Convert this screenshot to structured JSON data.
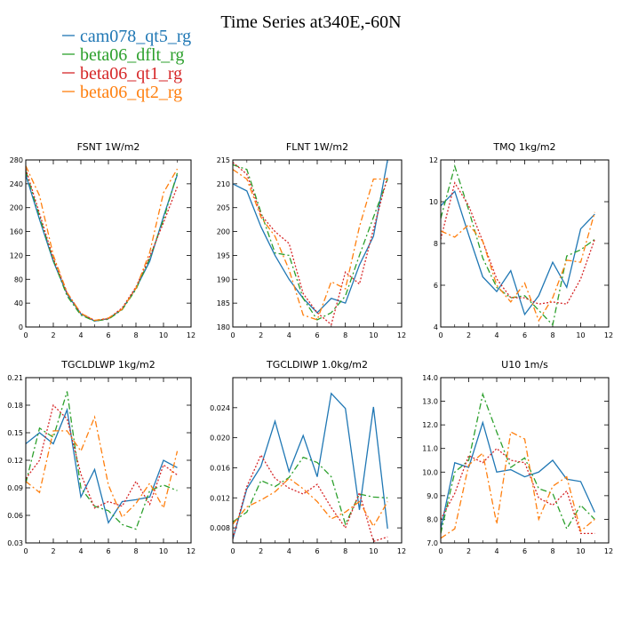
{
  "title": "Time Series at340E,-60N",
  "legend": [
    {
      "name": "cam078_qt5_rg",
      "color": "#1f77b4",
      "dash": "solid"
    },
    {
      "name": "beta06_dflt_rg",
      "color": "#2ca02c",
      "dash": "dashdot"
    },
    {
      "name": "beta06_qt1_rg",
      "color": "#d62728",
      "dash": "dotted"
    },
    {
      "name": "beta06_qt2_rg",
      "color": "#ff7f0e",
      "dash": "dashdot"
    }
  ],
  "chart_data": [
    {
      "type": "line",
      "title": "FSNT   1W/m2",
      "x": [
        0,
        1,
        2,
        3,
        4,
        5,
        6,
        7,
        8,
        9,
        10,
        11
      ],
      "xlim": [
        0,
        12
      ],
      "xticks": [
        0,
        2,
        4,
        6,
        8,
        10,
        12
      ],
      "ylim": [
        0,
        280
      ],
      "yticks": [
        0,
        40,
        80,
        120,
        160,
        200,
        240,
        280
      ],
      "ytick_labels": [
        "0",
        "40",
        "80",
        "120",
        "160",
        "200",
        "240",
        "280"
      ],
      "series": [
        {
          "name": "cam078_qt5_rg",
          "values": [
            255,
            180,
            110,
            55,
            22,
            10,
            14,
            30,
            65,
            110,
            185,
            255
          ]
        },
        {
          "name": "beta06_dflt_rg",
          "values": [
            262,
            185,
            112,
            52,
            20,
            10,
            13,
            29,
            63,
            115,
            180,
            258
          ]
        },
        {
          "name": "beta06_qt1_rg",
          "values": [
            265,
            190,
            115,
            57,
            23,
            11,
            14,
            32,
            67,
            118,
            175,
            235
          ]
        },
        {
          "name": "beta06_qt2_rg",
          "values": [
            270,
            220,
            120,
            58,
            23,
            11,
            15,
            30,
            65,
            125,
            225,
            265
          ]
        }
      ]
    },
    {
      "type": "line",
      "title": "FLNT   1W/m2",
      "x": [
        0,
        1,
        2,
        3,
        4,
        5,
        6,
        7,
        8,
        9,
        10,
        11
      ],
      "xlim": [
        0,
        12
      ],
      "xticks": [
        0,
        2,
        4,
        6,
        8,
        10,
        12
      ],
      "ylim": [
        180,
        215
      ],
      "yticks": [
        180,
        185,
        190,
        195,
        200,
        205,
        210,
        215
      ],
      "ytick_labels": [
        "180",
        "185",
        "190",
        "195",
        "200",
        "205",
        "210",
        "215"
      ],
      "series": [
        {
          "name": "cam078_qt5_rg",
          "values": [
            210,
            208.5,
            201,
            195,
            190,
            186,
            183,
            186,
            185,
            193,
            199,
            215
          ]
        },
        {
          "name": "beta06_dflt_rg",
          "values": [
            214,
            213,
            204,
            195.5,
            195,
            186,
            181.5,
            183,
            186.5,
            195,
            203,
            211
          ]
        },
        {
          "name": "beta06_qt1_rg",
          "values": [
            214.5,
            212,
            203.5,
            200,
            197.5,
            187,
            183,
            180.5,
            191.5,
            189,
            200.5,
            211.5
          ]
        },
        {
          "name": "beta06_qt2_rg",
          "values": [
            213,
            211,
            203,
            199,
            192,
            182.5,
            181.5,
            189.5,
            188,
            201,
            211,
            211
          ]
        }
      ]
    },
    {
      "type": "line",
      "title": "TMQ   1kg/m2",
      "x": [
        0,
        1,
        2,
        3,
        4,
        5,
        6,
        7,
        8,
        9,
        10,
        11
      ],
      "xlim": [
        0,
        12
      ],
      "xticks": [
        0,
        2,
        4,
        6,
        8,
        10,
        12
      ],
      "ylim": [
        4,
        12
      ],
      "yticks": [
        4,
        6,
        8,
        10,
        12
      ],
      "ytick_labels": [
        "4",
        "6",
        "8",
        "10",
        "12"
      ],
      "series": [
        {
          "name": "cam078_qt5_rg",
          "values": [
            9.8,
            10.5,
            8.4,
            6.4,
            5.7,
            6.7,
            4.6,
            5.5,
            7.1,
            5.9,
            8.7,
            9.4
          ]
        },
        {
          "name": "beta06_dflt_rg",
          "values": [
            9.2,
            11.7,
            9.6,
            7.3,
            5.9,
            5.4,
            5.5,
            4.8,
            4.1,
            7.4,
            7.7,
            8.2
          ]
        },
        {
          "name": "beta06_qt1_rg",
          "values": [
            8.2,
            10.9,
            9.8,
            8.1,
            6.3,
            5.4,
            5.4,
            5.1,
            5.2,
            5.1,
            6.3,
            8.2
          ]
        },
        {
          "name": "beta06_qt2_rg",
          "values": [
            8.6,
            8.3,
            8.9,
            8.1,
            6.0,
            5.2,
            6.1,
            4.3,
            5.4,
            7.2,
            7.1,
            9.5
          ]
        }
      ]
    },
    {
      "type": "line",
      "title": "TGCLDLWP   1kg/m2",
      "x": [
        0,
        1,
        2,
        3,
        4,
        5,
        6,
        7,
        8,
        9,
        10,
        11
      ],
      "xlim": [
        0,
        12
      ],
      "xticks": [
        0,
        2,
        4,
        6,
        8,
        10,
        12
      ],
      "ylim": [
        0.03,
        0.21
      ],
      "yticks": [
        0.03,
        0.06,
        0.09,
        0.12,
        0.15,
        0.18,
        0.21
      ],
      "ytick_labels": [
        "0.03",
        "0.06",
        "0.09",
        "0.12",
        "0.15",
        "0.18",
        "0.21"
      ],
      "series": [
        {
          "name": "cam078_qt5_rg",
          "values": [
            0.138,
            0.15,
            0.138,
            0.175,
            0.08,
            0.11,
            0.052,
            0.075,
            0.077,
            0.08,
            0.12,
            0.112
          ]
        },
        {
          "name": "beta06_dflt_rg",
          "values": [
            0.095,
            0.155,
            0.145,
            0.195,
            0.09,
            0.07,
            0.065,
            0.05,
            0.045,
            0.087,
            0.093,
            0.087
          ]
        },
        {
          "name": "beta06_qt1_rg",
          "values": [
            0.1,
            0.12,
            0.18,
            0.165,
            0.105,
            0.068,
            0.075,
            0.07,
            0.097,
            0.072,
            0.115,
            0.104
          ]
        },
        {
          "name": "beta06_qt2_rg",
          "values": [
            0.097,
            0.085,
            0.152,
            0.152,
            0.13,
            0.167,
            0.093,
            0.058,
            0.073,
            0.095,
            0.068,
            0.13
          ]
        }
      ]
    },
    {
      "type": "line",
      "title": "TGCLDIWP   1.0kg/m2",
      "x": [
        0,
        1,
        2,
        3,
        4,
        5,
        6,
        7,
        8,
        9,
        10,
        11
      ],
      "xlim": [
        0,
        12
      ],
      "xticks": [
        0,
        2,
        4,
        6,
        8,
        10,
        12
      ],
      "ylim": [
        0.006,
        0.028
      ],
      "yticks": [
        0.008,
        0.012,
        0.016,
        0.02,
        0.024
      ],
      "ytick_labels": [
        "0.008",
        "0.012",
        "0.016",
        "0.020",
        "0.024"
      ],
      "series": [
        {
          "name": "cam078_qt5_rg",
          "values": [
            0.0065,
            0.0132,
            0.0162,
            0.0222,
            0.0155,
            0.0203,
            0.0148,
            0.0259,
            0.0239,
            0.0104,
            0.0241,
            0.0079
          ]
        },
        {
          "name": "beta06_dflt_rg",
          "values": [
            0.0088,
            0.0101,
            0.0143,
            0.0135,
            0.0147,
            0.0174,
            0.0167,
            0.0148,
            0.0085,
            0.0125,
            0.0121,
            0.012
          ]
        },
        {
          "name": "beta06_qt1_rg",
          "values": [
            0.0066,
            0.0135,
            0.0177,
            0.0146,
            0.0133,
            0.0125,
            0.0138,
            0.0107,
            0.008,
            0.0127,
            0.0062,
            0.0068
          ]
        },
        {
          "name": "beta06_qt2_rg",
          "values": [
            0.0085,
            0.0108,
            0.0117,
            0.0128,
            0.0146,
            0.0132,
            0.0115,
            0.0092,
            0.0101,
            0.0115,
            0.0082,
            0.0115
          ]
        }
      ]
    },
    {
      "type": "line",
      "title": "U10   1m/s",
      "x": [
        0,
        1,
        2,
        3,
        4,
        5,
        6,
        7,
        8,
        9,
        10,
        11
      ],
      "xlim": [
        0,
        12
      ],
      "xticks": [
        0,
        2,
        4,
        6,
        8,
        10,
        12
      ],
      "ylim": [
        7,
        14
      ],
      "yticks": [
        7,
        8,
        9,
        10,
        11,
        12,
        13,
        14
      ],
      "ytick_labels": [
        "7.0",
        "8.0",
        "9.0",
        "10.0",
        "11.0",
        "12.0",
        "13.0",
        "14.0"
      ],
      "series": [
        {
          "name": "cam078_qt5_rg",
          "values": [
            7.6,
            10.4,
            10.2,
            12.1,
            10.0,
            10.1,
            9.8,
            10.0,
            10.5,
            9.7,
            9.6,
            8.3
          ]
        },
        {
          "name": "beta06_dflt_rg",
          "values": [
            7.4,
            10.0,
            10.5,
            13.3,
            11.7,
            10.2,
            10.6,
            9.3,
            9.1,
            7.6,
            8.6,
            8.0
          ]
        },
        {
          "name": "beta06_qt1_rg",
          "values": [
            8.0,
            9.1,
            10.7,
            10.4,
            11.0,
            10.5,
            10.4,
            8.9,
            8.6,
            9.2,
            7.4,
            7.4
          ]
        },
        {
          "name": "beta06_qt2_rg",
          "values": [
            7.2,
            7.6,
            10.3,
            10.8,
            7.8,
            11.7,
            11.4,
            8.0,
            9.4,
            9.8,
            7.5,
            8.0
          ]
        }
      ]
    }
  ]
}
